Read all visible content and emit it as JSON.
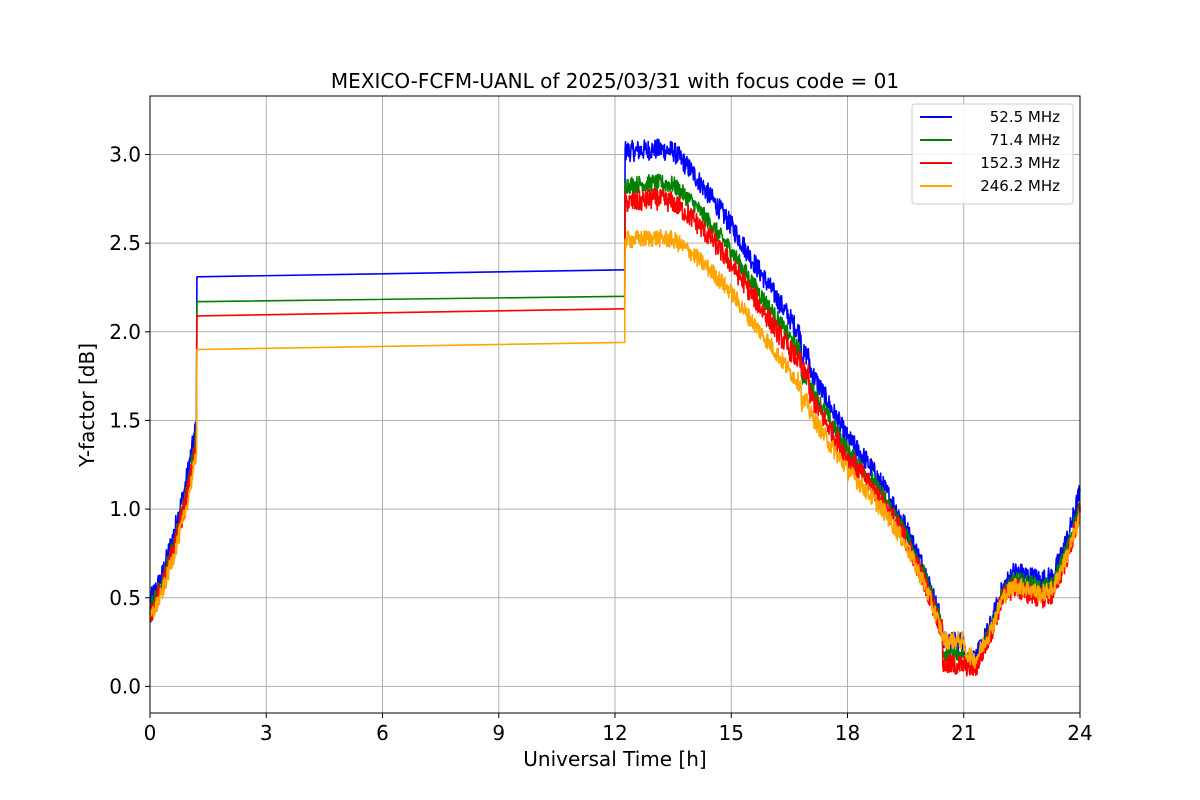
{
  "chart_data": {
    "type": "line",
    "title": "MEXICO-FCFM-UANL of 2025/03/31 with focus code = 01",
    "xlabel": "Universal Time [h]",
    "ylabel": "Y-factor [dB]",
    "xlim": [
      0,
      24
    ],
    "ylim": [
      -0.15,
      3.33
    ],
    "xticks": [
      0,
      3,
      6,
      9,
      12,
      15,
      18,
      21,
      24
    ],
    "yticks": [
      0.0,
      0.5,
      1.0,
      1.5,
      2.0,
      2.5,
      3.0
    ],
    "ytick_labels": [
      "0.0",
      "0.5",
      "1.0",
      "1.5",
      "2.0",
      "2.5",
      "3.0"
    ],
    "grid": true,
    "legend_position": "top-right",
    "series": [
      {
        "name": "52.5 MHz",
        "color": "#0000ff",
        "noise": 0.06,
        "x": [
          0,
          0.3,
          0.6,
          0.9,
          1.15,
          1.2,
          1.21,
          12.25,
          12.26,
          12.5,
          13.0,
          13.5,
          14.0,
          14.5,
          15.0,
          15.5,
          16.0,
          16.5,
          16.8,
          16.81,
          17.0,
          17.01,
          17.5,
          18.0,
          18.5,
          19.0,
          19.5,
          20.0,
          20.45,
          20.46,
          21.0,
          21.01,
          21.3,
          21.7,
          22.0,
          22.3,
          22.7,
          23.0,
          23.3,
          23.7,
          24.0
        ],
        "y": [
          0.48,
          0.62,
          0.85,
          1.12,
          1.42,
          1.5,
          2.31,
          2.35,
          3.02,
          3.02,
          3.03,
          3.02,
          2.9,
          2.75,
          2.6,
          2.42,
          2.25,
          2.08,
          1.98,
          1.87,
          1.87,
          1.8,
          1.6,
          1.4,
          1.27,
          1.1,
          0.9,
          0.65,
          0.35,
          0.25,
          0.25,
          0.18,
          0.15,
          0.35,
          0.55,
          0.65,
          0.62,
          0.6,
          0.62,
          0.85,
          1.1
        ]
      },
      {
        "name": "71.4 MHz",
        "color": "#008000",
        "noise": 0.05,
        "x": [
          0,
          0.3,
          0.6,
          0.9,
          1.15,
          1.2,
          1.21,
          12.25,
          12.26,
          12.5,
          13.0,
          13.5,
          14.0,
          14.5,
          15.0,
          15.5,
          16.0,
          16.5,
          16.8,
          16.81,
          17.0,
          17.01,
          17.5,
          18.0,
          18.5,
          19.0,
          19.5,
          20.0,
          20.45,
          20.46,
          21.0,
          21.01,
          21.3,
          21.7,
          22.0,
          22.3,
          22.7,
          23.0,
          23.3,
          23.7,
          24.0
        ],
        "y": [
          0.44,
          0.58,
          0.8,
          1.05,
          1.35,
          1.43,
          2.17,
          2.2,
          2.83,
          2.83,
          2.84,
          2.83,
          2.73,
          2.6,
          2.46,
          2.29,
          2.13,
          1.97,
          1.88,
          1.75,
          1.75,
          1.7,
          1.52,
          1.33,
          1.2,
          1.05,
          0.86,
          0.62,
          0.33,
          0.18,
          0.18,
          0.16,
          0.13,
          0.32,
          0.52,
          0.6,
          0.58,
          0.55,
          0.57,
          0.8,
          1.02
        ]
      },
      {
        "name": "152.3 MHz",
        "color": "#ff0000",
        "noise": 0.06,
        "x": [
          0,
          0.3,
          0.6,
          0.9,
          1.15,
          1.2,
          1.21,
          12.25,
          12.26,
          12.5,
          13.0,
          13.5,
          14.0,
          14.5,
          15.0,
          15.5,
          16.0,
          16.5,
          16.8,
          16.81,
          17.0,
          17.01,
          17.5,
          18.0,
          18.5,
          19.0,
          19.5,
          20.0,
          20.45,
          20.46,
          21.0,
          21.01,
          21.3,
          21.7,
          22.0,
          22.3,
          22.7,
          23.0,
          23.3,
          23.7,
          24.0
        ],
        "y": [
          0.4,
          0.55,
          0.77,
          1.02,
          1.3,
          1.38,
          2.09,
          2.13,
          2.73,
          2.73,
          2.75,
          2.73,
          2.64,
          2.52,
          2.38,
          2.22,
          2.06,
          1.9,
          1.82,
          1.77,
          1.77,
          1.65,
          1.47,
          1.29,
          1.16,
          1.01,
          0.83,
          0.58,
          0.31,
          0.12,
          0.12,
          0.12,
          0.1,
          0.3,
          0.5,
          0.56,
          0.52,
          0.5,
          0.52,
          0.75,
          0.98
        ]
      },
      {
        "name": "246.2 MHz",
        "color": "#ffa500",
        "noise": 0.05,
        "x": [
          0,
          0.3,
          0.6,
          0.9,
          1.15,
          1.2,
          1.21,
          12.25,
          12.26,
          12.5,
          13.0,
          13.5,
          14.0,
          14.5,
          15.0,
          15.5,
          16.0,
          16.5,
          16.8,
          16.81,
          17.0,
          17.01,
          17.5,
          18.0,
          18.5,
          19.0,
          19.5,
          20.0,
          20.45,
          20.46,
          21.0,
          21.01,
          21.3,
          21.7,
          22.0,
          22.3,
          22.7,
          23.0,
          23.3,
          23.7,
          24.0
        ],
        "y": [
          0.38,
          0.52,
          0.73,
          0.97,
          1.25,
          1.32,
          1.9,
          1.94,
          2.52,
          2.52,
          2.53,
          2.52,
          2.44,
          2.34,
          2.22,
          2.07,
          1.93,
          1.78,
          1.7,
          1.6,
          1.6,
          1.55,
          1.38,
          1.22,
          1.1,
          0.97,
          0.8,
          0.57,
          0.3,
          0.26,
          0.26,
          0.2,
          0.15,
          0.32,
          0.5,
          0.57,
          0.55,
          0.52,
          0.55,
          0.76,
          0.95
        ]
      }
    ]
  }
}
